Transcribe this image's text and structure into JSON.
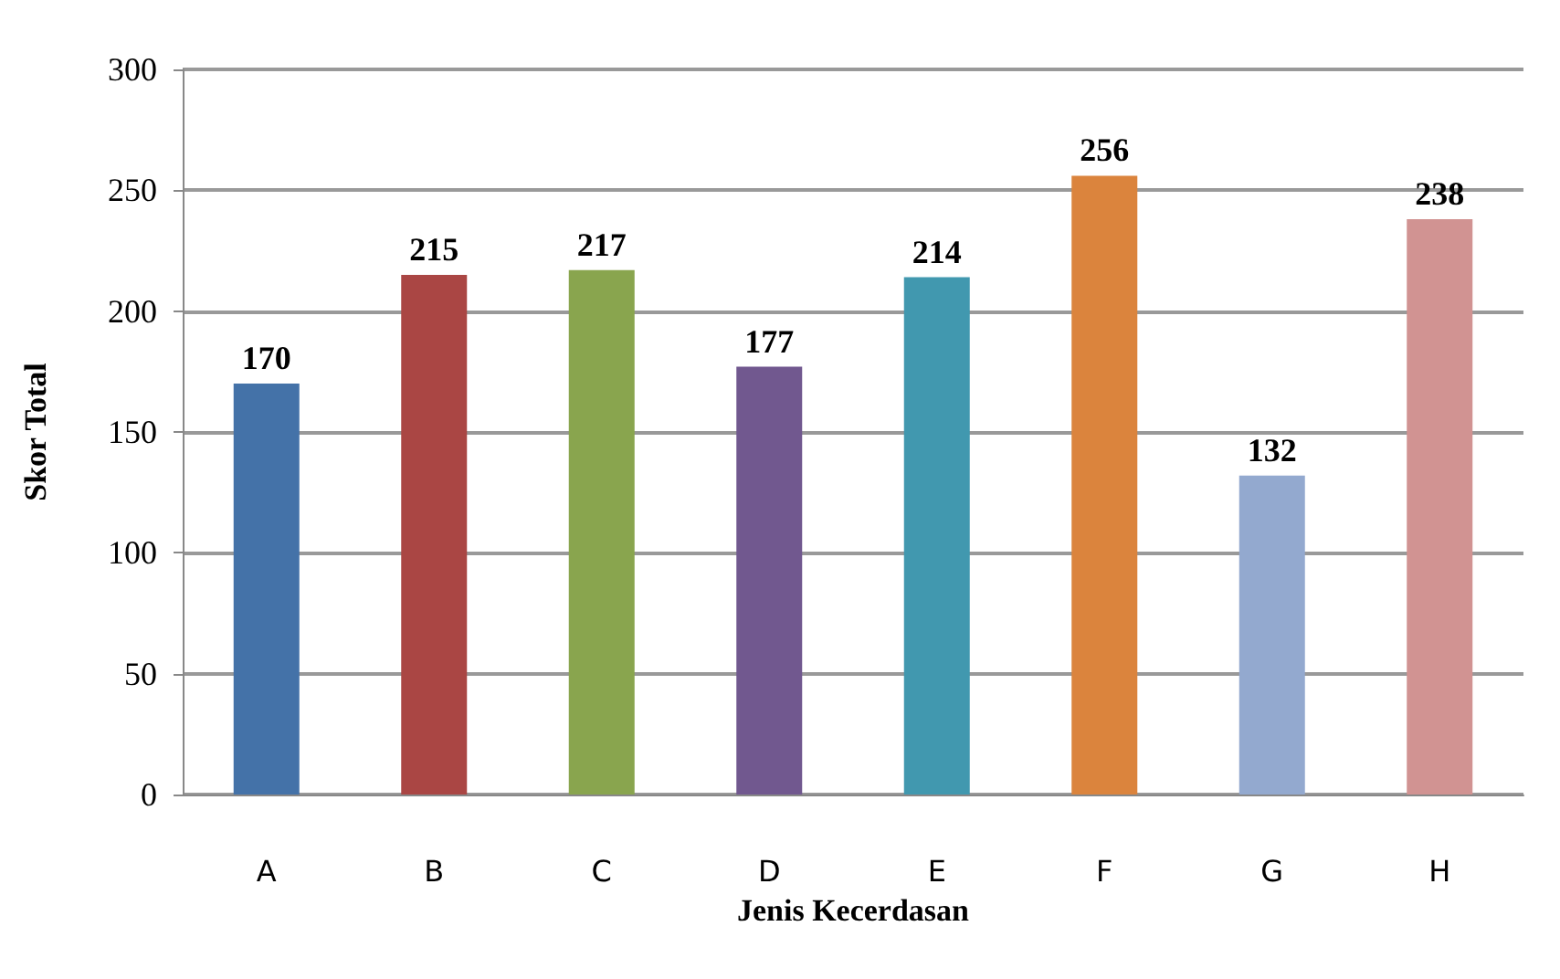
{
  "chart_data": {
    "type": "bar",
    "xlabel": "Jenis Kecerdasan",
    "ylabel": "Skor Total",
    "categories": [
      "A",
      "B",
      "C",
      "D",
      "E",
      "F",
      "G",
      "H"
    ],
    "values": [
      170,
      215,
      217,
      177,
      214,
      256,
      132,
      238
    ],
    "colors": [
      "#4472a8",
      "#aa4644",
      "#89a54e",
      "#71588f",
      "#4198af",
      "#db843d",
      "#93a9cf",
      "#d19392"
    ],
    "ylim": [
      0,
      300
    ],
    "yticks": [
      0,
      50,
      100,
      150,
      200,
      250,
      300
    ],
    "grid": "y",
    "data_labels": true
  }
}
